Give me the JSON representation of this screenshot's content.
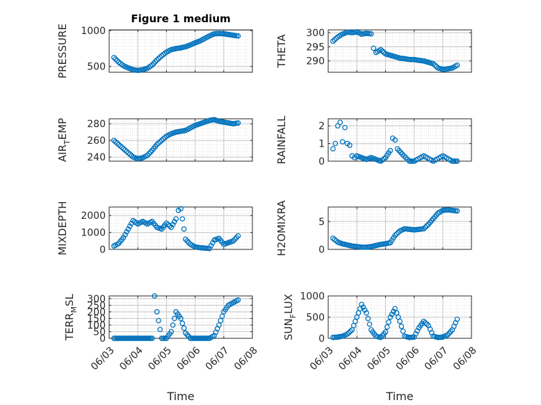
{
  "figure_title": "Figure 1 medium",
  "chart_data": [
    {
      "id": "pressure",
      "type": "scatter",
      "title": "Figure 1 medium",
      "ylabel": "PRESSURE",
      "ylabel_main": "PRESSURE",
      "ylabel_sub": "",
      "ylabel_tail": "",
      "xlim": [
        "06/03",
        "06/08"
      ],
      "ylim": [
        420,
        1010
      ],
      "yticks": [
        500,
        1000
      ],
      "ytick_labels": [
        "500",
        "1000"
      ],
      "grid": true,
      "minor_grid": true,
      "show_xticks": false,
      "xlabel": "",
      "marker_color": "#0072BD",
      "x": [
        "06/03 04:00",
        "06/03 08:00",
        "06/03 12:00",
        "06/03 16:00",
        "06/03 20:00",
        "06/04 00:00",
        "06/04 04:00",
        "06/04 08:00",
        "06/04 12:00",
        "06/04 16:00",
        "06/04 20:00",
        "06/05 00:00",
        "06/05 04:00",
        "06/05 08:00",
        "06/05 12:00",
        "06/05 16:00",
        "06/05 20:00",
        "06/06 00:00",
        "06/06 04:00",
        "06/06 08:00",
        "06/06 12:00",
        "06/06 16:00",
        "06/06 20:00",
        "06/07 00:00",
        "06/07 04:00",
        "06/07 08:00",
        "06/07 12:00"
      ],
      "y": [
        625,
        560,
        510,
        480,
        455,
        445,
        455,
        475,
        520,
        590,
        650,
        700,
        735,
        750,
        760,
        775,
        800,
        830,
        855,
        890,
        925,
        955,
        960,
        955,
        945,
        935,
        925
      ]
    },
    {
      "id": "theta",
      "type": "scatter",
      "title": "",
      "ylabel": "THETA",
      "ylabel_main": "THETA",
      "ylabel_sub": "",
      "ylabel_tail": "",
      "xlim": [
        "06/03",
        "06/08"
      ],
      "ylim": [
        286,
        301
      ],
      "yticks": [
        290,
        295,
        300
      ],
      "ytick_labels": [
        "290",
        "295",
        "300"
      ],
      "grid": true,
      "minor_grid": true,
      "show_xticks": false,
      "xlabel": "",
      "marker_color": "#0072BD",
      "x": [
        "06/03 04:00",
        "06/03 08:00",
        "06/03 12:00",
        "06/03 16:00",
        "06/03 20:00",
        "06/04 00:00",
        "06/04 04:00",
        "06/04 08:00",
        "06/04 12:00",
        "06/04 14:00",
        "06/04 16:00",
        "06/04 20:00",
        "06/05 00:00",
        "06/05 04:00",
        "06/05 08:00",
        "06/05 12:00",
        "06/05 16:00",
        "06/05 20:00",
        "06/06 00:00",
        "06/06 04:00",
        "06/06 08:00",
        "06/06 12:00",
        "06/06 16:00",
        "06/06 20:00",
        "06/07 00:00",
        "06/07 04:00",
        "06/07 08:00",
        "06/07 12:00"
      ],
      "y": [
        297,
        298.5,
        299.5,
        300.2,
        300,
        300.3,
        299.5,
        299.8,
        299.6,
        294.5,
        293,
        294,
        292.5,
        292,
        291.5,
        291,
        290.8,
        290.5,
        290.5,
        290.2,
        290,
        289.5,
        289,
        287.5,
        287,
        287.2,
        287.5,
        288.5
      ]
    },
    {
      "id": "air_temp",
      "type": "scatter",
      "title": "",
      "ylabel": "AIR_TEMP",
      "ylabel_main": "AIR",
      "ylabel_sub": "T",
      "ylabel_tail": "EMP",
      "xlim": [
        "06/03",
        "06/08"
      ],
      "ylim": [
        235,
        286
      ],
      "yticks": [
        240,
        260,
        280
      ],
      "ytick_labels": [
        "240",
        "260",
        "280"
      ],
      "grid": true,
      "minor_grid": true,
      "show_xticks": false,
      "xlabel": "",
      "marker_color": "#0072BD",
      "x": [
        "06/03 04:00",
        "06/03 08:00",
        "06/03 12:00",
        "06/03 16:00",
        "06/03 20:00",
        "06/04 00:00",
        "06/04 04:00",
        "06/04 08:00",
        "06/04 12:00",
        "06/04 16:00",
        "06/04 20:00",
        "06/05 00:00",
        "06/05 04:00",
        "06/05 08:00",
        "06/05 12:00",
        "06/05 16:00",
        "06/05 20:00",
        "06/06 00:00",
        "06/06 04:00",
        "06/06 08:00",
        "06/06 12:00",
        "06/06 16:00",
        "06/06 20:00",
        "06/07 00:00",
        "06/07 04:00",
        "06/07 08:00",
        "06/07 12:00"
      ],
      "y": [
        260,
        255,
        250,
        245,
        240,
        238,
        239,
        242,
        248,
        255,
        260,
        265,
        268,
        270,
        271,
        272,
        275,
        278,
        280,
        282,
        284,
        285,
        283,
        282,
        281,
        280,
        281
      ]
    },
    {
      "id": "rainfall",
      "type": "scatter",
      "title": "",
      "ylabel": "RAINFALL",
      "ylabel_main": "RAINFALL",
      "ylabel_sub": "",
      "ylabel_tail": "",
      "xlim": [
        "06/03",
        "06/08"
      ],
      "ylim": [
        0,
        2.4
      ],
      "yticks": [
        0,
        1,
        2
      ],
      "ytick_labels": [
        "0",
        "1",
        "2"
      ],
      "grid": true,
      "minor_grid": true,
      "show_xticks": false,
      "xlabel": "",
      "marker_color": "#0072BD",
      "x": [
        "06/03 04:00",
        "06/03 06:00",
        "06/03 08:00",
        "06/03 10:00",
        "06/03 12:00",
        "06/03 14:00",
        "06/03 16:00",
        "06/03 18:00",
        "06/03 20:00",
        "06/03 22:00",
        "06/04 00:00",
        "06/04 04:00",
        "06/04 08:00",
        "06/04 12:00",
        "06/04 16:00",
        "06/04 20:00",
        "06/05 00:00",
        "06/05 04:00",
        "06/05 06:00",
        "06/05 08:00",
        "06/05 10:00",
        "06/05 14:00",
        "06/05 20:00",
        "06/06 00:00",
        "06/06 08:00",
        "06/06 16:00",
        "06/07 00:00",
        "06/07 08:00",
        "06/07 12:00"
      ],
      "y": [
        0.7,
        1.0,
        2.0,
        2.2,
        1.1,
        1.9,
        1.0,
        0.9,
        0.3,
        0.2,
        0.3,
        0.2,
        0.1,
        0.2,
        0.1,
        0.0,
        0.2,
        0.6,
        1.3,
        1.2,
        0.7,
        0.4,
        0.0,
        0.0,
        0.3,
        0.0,
        0.3,
        0.0,
        0.0
      ]
    },
    {
      "id": "mixdepth",
      "type": "scatter",
      "title": "",
      "ylabel": "MIXDEPTH",
      "ylabel_main": "MIXDEPTH",
      "ylabel_sub": "",
      "ylabel_tail": "",
      "xlim": [
        "06/03",
        "06/08"
      ],
      "ylim": [
        0,
        2500
      ],
      "yticks": [
        0,
        1000,
        2000
      ],
      "ytick_labels": [
        "0",
        "1000",
        "2000"
      ],
      "grid": true,
      "minor_grid": true,
      "show_xticks": false,
      "xlabel": "",
      "marker_color": "#0072BD",
      "x": [
        "06/03 04:00",
        "06/03 08:00",
        "06/03 12:00",
        "06/03 16:00",
        "06/03 20:00",
        "06/04 00:00",
        "06/04 04:00",
        "06/04 08:00",
        "06/04 12:00",
        "06/04 16:00",
        "06/04 20:00",
        "06/05 00:00",
        "06/05 04:00",
        "06/05 08:00",
        "06/05 10:00",
        "06/05 12:00",
        "06/05 16:00",
        "06/05 20:00",
        "06/06 00:00",
        "06/06 04:00",
        "06/06 08:00",
        "06/06 12:00",
        "06/06 16:00",
        "06/06 20:00",
        "06/07 00:00",
        "06/07 04:00",
        "06/07 08:00",
        "06/07 12:00"
      ],
      "y": [
        200,
        350,
        700,
        1200,
        1700,
        1500,
        1650,
        1500,
        1650,
        1300,
        1200,
        1550,
        1300,
        1800,
        2300,
        2400,
        600,
        300,
        150,
        100,
        80,
        50,
        550,
        650,
        300,
        400,
        500,
        800
      ]
    },
    {
      "id": "h2omixra",
      "type": "scatter",
      "title": "",
      "ylabel": "H2OMIXRA",
      "ylabel_main": "H2OMIXRA",
      "ylabel_sub": "",
      "ylabel_tail": "",
      "xlim": [
        "06/03",
        "06/08"
      ],
      "ylim": [
        0,
        7.6
      ],
      "yticks": [
        0,
        5
      ],
      "ytick_labels": [
        "0",
        "5"
      ],
      "grid": true,
      "minor_grid": true,
      "show_xticks": false,
      "xlabel": "",
      "marker_color": "#0072BD",
      "x": [
        "06/03 04:00",
        "06/03 08:00",
        "06/03 12:00",
        "06/03 16:00",
        "06/03 20:00",
        "06/04 00:00",
        "06/04 04:00",
        "06/04 08:00",
        "06/04 12:00",
        "06/04 16:00",
        "06/04 20:00",
        "06/05 00:00",
        "06/05 04:00",
        "06/05 08:00",
        "06/05 12:00",
        "06/05 16:00",
        "06/05 20:00",
        "06/06 00:00",
        "06/06 04:00",
        "06/06 08:00",
        "06/06 12:00",
        "06/06 16:00",
        "06/06 20:00",
        "06/07 00:00",
        "06/07 04:00",
        "06/07 08:00",
        "06/07 12:00"
      ],
      "y": [
        2.0,
        1.3,
        1.0,
        0.8,
        0.6,
        0.5,
        0.4,
        0.4,
        0.5,
        0.7,
        0.9,
        1.0,
        1.2,
        2.5,
        3.3,
        3.7,
        3.6,
        3.5,
        3.6,
        3.7,
        4.5,
        5.5,
        6.5,
        7.0,
        7.1,
        7.0,
        6.9
      ]
    },
    {
      "id": "terr_msl",
      "type": "scatter",
      "title": "",
      "ylabel": "TERR_MSL",
      "ylabel_main": "TERR",
      "ylabel_sub": "M",
      "ylabel_tail": "SL",
      "xlim": [
        "06/03",
        "06/08"
      ],
      "ylim": [
        0,
        320
      ],
      "yticks": [
        0,
        50,
        100,
        150,
        200,
        250,
        300
      ],
      "ytick_labels": [
        "0",
        "50",
        "100",
        "150",
        "200",
        "250",
        "300"
      ],
      "grid": true,
      "minor_grid": true,
      "show_xticks": true,
      "xlabel": "Time",
      "marker_color": "#0072BD",
      "xticks": [
        "06/03",
        "06/04",
        "06/05",
        "06/06",
        "06/07",
        "06/08"
      ],
      "xtick_labels": [
        "06/03",
        "06/04",
        "06/05",
        "06/06",
        "06/07",
        "06/08"
      ],
      "x": [
        "06/03 04:00",
        "06/03 08:00",
        "06/03 12:00",
        "06/03 16:00",
        "06/03 20:00",
        "06/04 00:00",
        "06/04 04:00",
        "06/04 08:00",
        "06/04 12:00",
        "06/04 14:00",
        "06/04 16:00",
        "06/04 20:00",
        "06/05 00:00",
        "06/05 04:00",
        "06/05 08:00",
        "06/05 12:00",
        "06/05 16:00",
        "06/05 20:00",
        "06/06 00:00",
        "06/06 04:00",
        "06/06 08:00",
        "06/06 12:00",
        "06/06 16:00",
        "06/06 20:00",
        "06/07 00:00",
        "06/07 04:00",
        "06/07 08:00",
        "06/07 12:00"
      ],
      "y": [
        0,
        0,
        0,
        0,
        0,
        0,
        0,
        0,
        0,
        320,
        200,
        0,
        0,
        50,
        200,
        150,
        40,
        0,
        0,
        0,
        0,
        0,
        20,
        100,
        200,
        250,
        270,
        290
      ]
    },
    {
      "id": "sun_flux",
      "type": "scatter",
      "title": "",
      "ylabel": "SUN_FLUX",
      "ylabel_main": "SUN",
      "ylabel_sub": "F",
      "ylabel_tail": "LUX",
      "xlim": [
        "06/03",
        "06/08"
      ],
      "ylim": [
        0,
        1000
      ],
      "yticks": [
        0,
        500,
        1000
      ],
      "ytick_labels": [
        "0",
        "500",
        "1000"
      ],
      "grid": true,
      "minor_grid": true,
      "show_xticks": true,
      "xlabel": "Time",
      "marker_color": "#0072BD",
      "xticks": [
        "06/03",
        "06/04",
        "06/05",
        "06/06",
        "06/07",
        "06/08"
      ],
      "xtick_labels": [
        "06/03",
        "06/04",
        "06/05",
        "06/06",
        "06/07",
        "06/08"
      ],
      "x": [
        "06/03 04:00",
        "06/03 08:00",
        "06/03 12:00",
        "06/03 16:00",
        "06/03 20:00",
        "06/04 00:00",
        "06/04 04:00",
        "06/04 08:00",
        "06/04 12:00",
        "06/04 16:00",
        "06/04 20:00",
        "06/05 00:00",
        "06/05 04:00",
        "06/05 08:00",
        "06/05 12:00",
        "06/05 16:00",
        "06/05 20:00",
        "06/06 00:00",
        "06/06 04:00",
        "06/06 08:00",
        "06/06 12:00",
        "06/06 16:00",
        "06/06 20:00",
        "06/07 00:00",
        "06/07 04:00",
        "06/07 08:00",
        "06/07 12:00"
      ],
      "y": [
        20,
        30,
        50,
        100,
        200,
        500,
        800,
        600,
        200,
        50,
        20,
        150,
        500,
        700,
        400,
        50,
        20,
        30,
        250,
        400,
        300,
        50,
        20,
        30,
        80,
        200,
        450
      ]
    }
  ]
}
